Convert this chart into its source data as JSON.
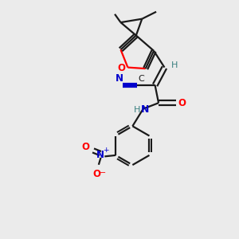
{
  "bg_color": "#ebebeb",
  "bond_color": "#1a1a1a",
  "oxygen_color": "#ff0000",
  "nitrogen_color": "#0000cc",
  "teal_color": "#3a8080",
  "figsize": [
    3.0,
    3.0
  ],
  "dpi": 100,
  "xlim": [
    0,
    10
  ],
  "ylim": [
    0,
    10
  ]
}
